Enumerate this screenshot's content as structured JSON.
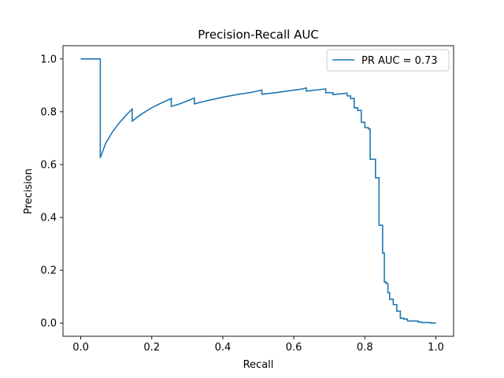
{
  "chart_data": {
    "type": "line",
    "title": "Precision-Recall AUC",
    "xlabel": "Recall",
    "ylabel": "Precision",
    "xlim": [
      -0.05,
      1.05
    ],
    "ylim": [
      -0.05,
      1.05
    ],
    "xticks": [
      0.0,
      0.2,
      0.4,
      0.6,
      0.8,
      1.0
    ],
    "xtick_labels": [
      "0.0",
      "0.2",
      "0.4",
      "0.6",
      "0.8",
      "1.0"
    ],
    "yticks": [
      0.0,
      0.2,
      0.4,
      0.6,
      0.8,
      1.0
    ],
    "ytick_labels": [
      "0.0",
      "0.2",
      "0.4",
      "0.6",
      "0.8",
      "1.0"
    ],
    "grid": false,
    "legend_position": "top-right",
    "series": [
      {
        "name": "PR AUC = 0.73",
        "color": "#1f77b4",
        "x": [
          0.0,
          0.055,
          0.055,
          0.07,
          0.09,
          0.11,
          0.13,
          0.145,
          0.145,
          0.17,
          0.2,
          0.23,
          0.255,
          0.255,
          0.28,
          0.32,
          0.32,
          0.36,
          0.4,
          0.44,
          0.48,
          0.51,
          0.51,
          0.55,
          0.58,
          0.62,
          0.635,
          0.635,
          0.66,
          0.69,
          0.69,
          0.71,
          0.71,
          0.75,
          0.75,
          0.76,
          0.76,
          0.77,
          0.77,
          0.78,
          0.78,
          0.79,
          0.79,
          0.8,
          0.8,
          0.81,
          0.81,
          0.815,
          0.815,
          0.83,
          0.83,
          0.84,
          0.84,
          0.85,
          0.85,
          0.855,
          0.855,
          0.86,
          0.86,
          0.865,
          0.865,
          0.87,
          0.87,
          0.88,
          0.88,
          0.89,
          0.89,
          0.9,
          0.9,
          0.91,
          0.91,
          0.92,
          0.92,
          0.95,
          0.95,
          0.96,
          0.96,
          0.975,
          0.975,
          0.985,
          0.985,
          1.0
        ],
        "y": [
          1.0,
          1.0,
          0.625,
          0.68,
          0.725,
          0.76,
          0.79,
          0.81,
          0.765,
          0.79,
          0.815,
          0.835,
          0.85,
          0.82,
          0.83,
          0.852,
          0.83,
          0.843,
          0.855,
          0.865,
          0.873,
          0.882,
          0.866,
          0.872,
          0.878,
          0.885,
          0.89,
          0.878,
          0.882,
          0.886,
          0.872,
          0.872,
          0.865,
          0.87,
          0.86,
          0.86,
          0.85,
          0.85,
          0.815,
          0.815,
          0.805,
          0.805,
          0.76,
          0.76,
          0.74,
          0.74,
          0.735,
          0.735,
          0.62,
          0.62,
          0.55,
          0.55,
          0.37,
          0.37,
          0.265,
          0.265,
          0.155,
          0.155,
          0.15,
          0.15,
          0.115,
          0.115,
          0.09,
          0.09,
          0.07,
          0.07,
          0.045,
          0.045,
          0.018,
          0.018,
          0.015,
          0.015,
          0.008,
          0.008,
          0.004,
          0.004,
          0.002,
          0.002,
          0.002,
          0.002,
          0.0,
          0.0
        ]
      }
    ]
  }
}
